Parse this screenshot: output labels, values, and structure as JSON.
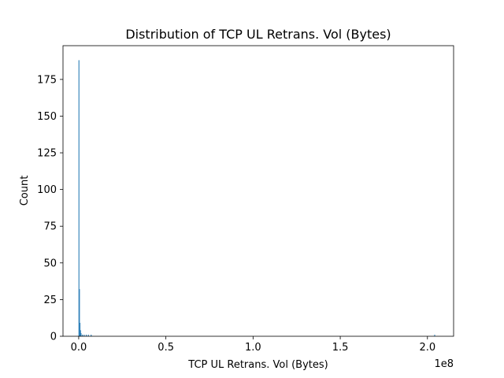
{
  "chart_data": {
    "type": "bar",
    "title": "Distribution of TCP UL Retrans. Vol (Bytes)",
    "xlabel": "TCP UL Retrans. Vol (Bytes)",
    "ylabel": "Count",
    "x_offset_label": "1e8",
    "xlim": [
      -9000000,
      215000000
    ],
    "ylim": [
      0,
      198
    ],
    "x_ticks": [
      0,
      50000000,
      100000000,
      150000000,
      200000000
    ],
    "x_tick_labels": [
      "0.0",
      "0.5",
      "1.0",
      "1.5",
      "2.0"
    ],
    "y_ticks": [
      0,
      25,
      50,
      75,
      100,
      125,
      150,
      175
    ],
    "y_tick_labels": [
      "0",
      "25",
      "50",
      "75",
      "100",
      "125",
      "150",
      "175"
    ],
    "grid": false,
    "series": [
      {
        "color": "#1f77b4",
        "bins": [
          {
            "x0": 0,
            "x1": 300000,
            "count": 188
          },
          {
            "x0": 300000,
            "x1": 600000,
            "count": 32
          },
          {
            "x0": 600000,
            "x1": 900000,
            "count": 9
          },
          {
            "x0": 900000,
            "x1": 1200000,
            "count": 4
          },
          {
            "x0": 1200000,
            "x1": 1500000,
            "count": 2
          },
          {
            "x0": 2000000,
            "x1": 2300000,
            "count": 1
          },
          {
            "x0": 3000000,
            "x1": 3300000,
            "count": 1
          },
          {
            "x0": 4200000,
            "x1": 4500000,
            "count": 1
          },
          {
            "x0": 5400000,
            "x1": 5700000,
            "count": 1
          },
          {
            "x0": 7000000,
            "x1": 7300000,
            "count": 1
          },
          {
            "x0": 204000000,
            "x1": 204300000,
            "count": 1
          }
        ]
      }
    ]
  }
}
